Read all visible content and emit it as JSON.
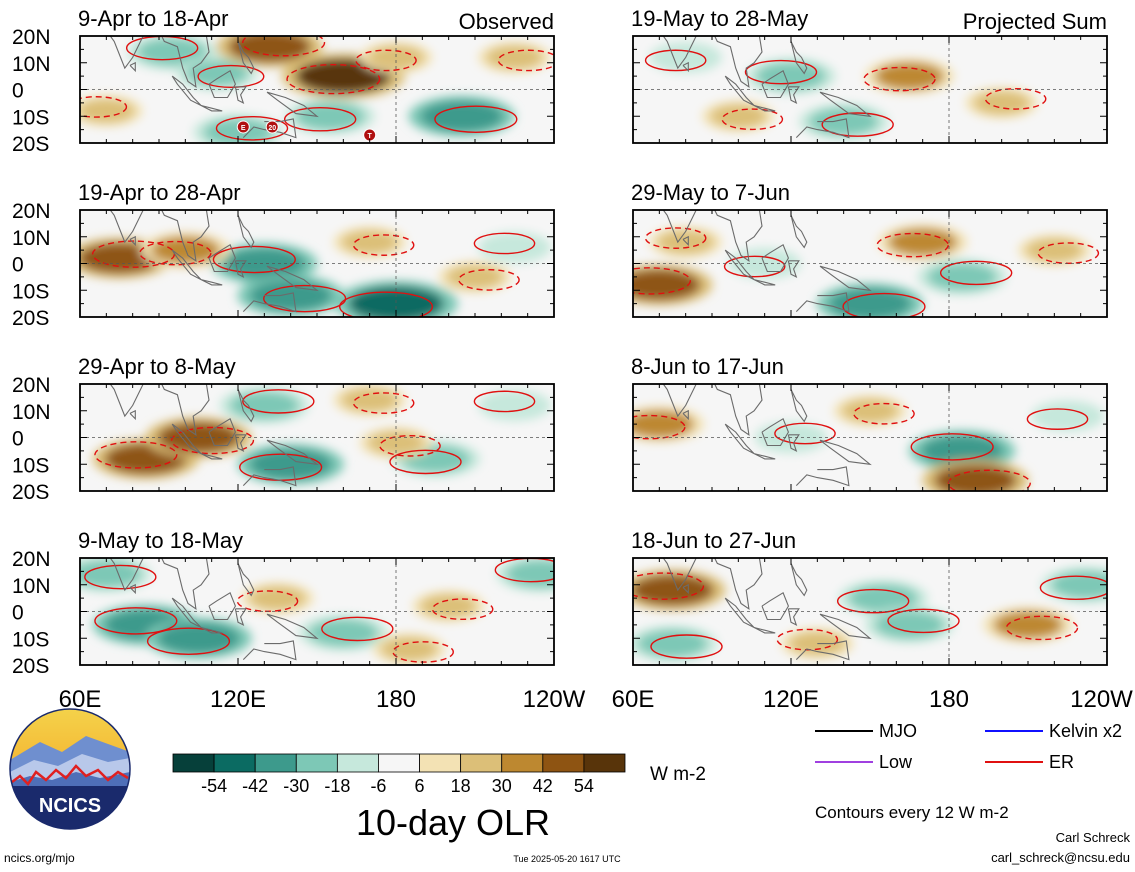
{
  "chart_data": {
    "type": "heatmap",
    "title": "10-day OLR",
    "units": "W m-2",
    "contour_note": "Contours every 12 W m-2",
    "x_axis": {
      "ticks": [
        "60E",
        "120E",
        "180",
        "120W"
      ],
      "range": [
        60,
        240
      ]
    },
    "y_axis": {
      "ticks": [
        "20N",
        "10N",
        "0",
        "10S",
        "20S"
      ],
      "range": [
        -20,
        20
      ]
    },
    "colorbar": {
      "tick_labels": [
        "-54",
        "-42",
        "-30",
        "-18",
        "-6",
        "6",
        "18",
        "30",
        "42",
        "54"
      ],
      "colors": [
        "#06403a",
        "#0b6b62",
        "#3d9a8c",
        "#7dc8b6",
        "#c6e8dc",
        "#f6f6f6",
        "#f3e2b4",
        "#dcbf78",
        "#bd8830",
        "#8e5412",
        "#58340a"
      ]
    },
    "legend": {
      "items": [
        {
          "label": "MJO",
          "color": "#000000"
        },
        {
          "label": "Kelvin x2",
          "color": "#1010ff"
        },
        {
          "label": "Low",
          "color": "#a040e0"
        },
        {
          "label": "ER",
          "color": "#e01010"
        }
      ]
    },
    "panels": [
      {
        "period": "9-Apr to 18-Apr",
        "tag": "Observed",
        "anomalies": [
          {
            "lon": 95,
            "lat": 14,
            "v": -30
          },
          {
            "lon": 112,
            "lat": 6,
            "v": -24
          },
          {
            "lon": 160,
            "lat": 5,
            "v": 54
          },
          {
            "lon": 132,
            "lat": 16,
            "v": 42
          },
          {
            "lon": 155,
            "lat": -10,
            "v": -30
          },
          {
            "lon": 205,
            "lat": -10,
            "v": -42
          },
          {
            "lon": 70,
            "lat": -8,
            "v": 18
          },
          {
            "lon": 225,
            "lat": 12,
            "v": 18
          },
          {
            "lon": 180,
            "lat": 12,
            "v": 18
          },
          {
            "lon": 120,
            "lat": -16,
            "v": -30
          }
        ],
        "storm_markers": [
          "E",
          "20",
          "T"
        ]
      },
      {
        "period": "19-Apr to 28-Apr",
        "tag": "",
        "anomalies": [
          {
            "lon": 130,
            "lat": 0,
            "v": -42
          },
          {
            "lon": 140,
            "lat": -12,
            "v": -42
          },
          {
            "lon": 180,
            "lat": -15,
            "v": -54
          },
          {
            "lon": 75,
            "lat": 2,
            "v": 42
          },
          {
            "lon": 100,
            "lat": 5,
            "v": 30
          },
          {
            "lon": 170,
            "lat": 8,
            "v": 18
          },
          {
            "lon": 225,
            "lat": 6,
            "v": -18
          },
          {
            "lon": 210,
            "lat": -5,
            "v": 18
          }
        ]
      },
      {
        "period": "29-Apr to 8-May",
        "tag": "",
        "anomalies": [
          {
            "lon": 85,
            "lat": -8,
            "v": 42
          },
          {
            "lon": 105,
            "lat": 0,
            "v": 42
          },
          {
            "lon": 140,
            "lat": -10,
            "v": -42
          },
          {
            "lon": 130,
            "lat": 12,
            "v": -30
          },
          {
            "lon": 195,
            "lat": -8,
            "v": -30
          },
          {
            "lon": 170,
            "lat": 14,
            "v": 18
          },
          {
            "lon": 225,
            "lat": 12,
            "v": -18
          },
          {
            "lon": 180,
            "lat": -2,
            "v": 18
          }
        ]
      },
      {
        "period": "9-May to 18-May",
        "tag": "",
        "anomalies": [
          {
            "lon": 85,
            "lat": -5,
            "v": -42
          },
          {
            "lon": 70,
            "lat": 14,
            "v": -30
          },
          {
            "lon": 105,
            "lat": -10,
            "v": -42
          },
          {
            "lon": 160,
            "lat": -8,
            "v": -30
          },
          {
            "lon": 135,
            "lat": 5,
            "v": 18
          },
          {
            "lon": 200,
            "lat": 2,
            "v": 18
          },
          {
            "lon": 235,
            "lat": 14,
            "v": -30
          },
          {
            "lon": 185,
            "lat": -14,
            "v": 18
          }
        ]
      },
      {
        "period": "19-May to 28-May",
        "tag": "Projected Sum",
        "anomalies": [
          {
            "lon": 120,
            "lat": 5,
            "v": -30
          },
          {
            "lon": 140,
            "lat": -12,
            "v": -30
          },
          {
            "lon": 165,
            "lat": 5,
            "v": 30
          },
          {
            "lon": 200,
            "lat": -5,
            "v": 18
          },
          {
            "lon": 80,
            "lat": 12,
            "v": -18
          },
          {
            "lon": 100,
            "lat": -10,
            "v": 18
          },
          {
            "lon": 215,
            "lat": 10,
            "v": -6
          }
        ]
      },
      {
        "period": "29-May to 7-Jun",
        "tag": "",
        "anomalies": [
          {
            "lon": 70,
            "lat": -8,
            "v": 42
          },
          {
            "lon": 150,
            "lat": -15,
            "v": -42
          },
          {
            "lon": 170,
            "lat": 8,
            "v": 30
          },
          {
            "lon": 185,
            "lat": -5,
            "v": -30
          },
          {
            "lon": 110,
            "lat": 0,
            "v": -18
          },
          {
            "lon": 220,
            "lat": 5,
            "v": 18
          },
          {
            "lon": 80,
            "lat": 8,
            "v": 18
          }
        ]
      },
      {
        "period": "8-Jun to 17-Jun",
        "tag": "",
        "anomalies": [
          {
            "lon": 185,
            "lat": -5,
            "v": -42
          },
          {
            "lon": 190,
            "lat": -16,
            "v": 42
          },
          {
            "lon": 70,
            "lat": 5,
            "v": 30
          },
          {
            "lon": 120,
            "lat": 0,
            "v": -18
          },
          {
            "lon": 225,
            "lat": 8,
            "v": -18
          },
          {
            "lon": 150,
            "lat": 10,
            "v": 18
          }
        ]
      },
      {
        "period": "18-Jun to 27-Jun",
        "tag": "",
        "anomalies": [
          {
            "lon": 75,
            "lat": 8,
            "v": 42
          },
          {
            "lon": 75,
            "lat": -12,
            "v": -30
          },
          {
            "lon": 155,
            "lat": 5,
            "v": -30
          },
          {
            "lon": 165,
            "lat": -5,
            "v": -30
          },
          {
            "lon": 232,
            "lat": 10,
            "v": -30
          },
          {
            "lon": 210,
            "lat": -5,
            "v": 30
          },
          {
            "lon": 130,
            "lat": -12,
            "v": 18
          }
        ]
      }
    ]
  },
  "branding": {
    "logo_text": "NCICS",
    "url": "ncics.org/mjo",
    "timestamp": "Tue 2025-05-20 1617 UTC",
    "author": "Carl Schreck",
    "email": "carl_schreck@ncsu.edu"
  }
}
